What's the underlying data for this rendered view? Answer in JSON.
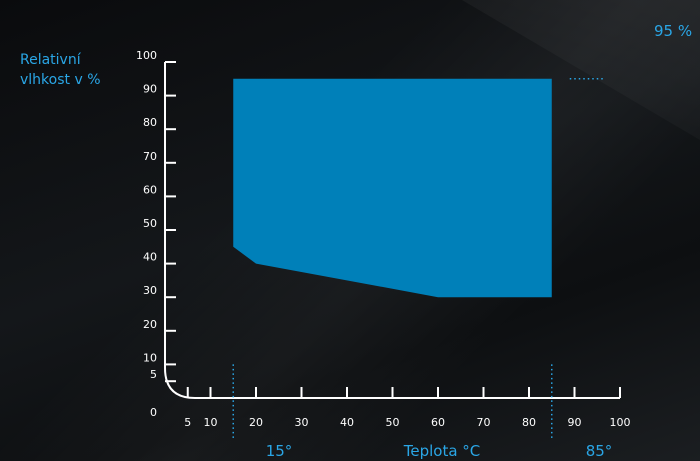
{
  "chart_data": {
    "type": "area",
    "ylabel_line1": "Relativní",
    "ylabel_line2": "vlhkost v  %",
    "xlabel": "Teplota °C",
    "x_ticks": [
      "5",
      "10",
      "20",
      "30",
      "40",
      "50",
      "60",
      "70",
      "80",
      "90",
      "100"
    ],
    "x_tick_values": [
      5,
      10,
      20,
      30,
      40,
      50,
      60,
      70,
      80,
      90,
      100
    ],
    "y_ticks": [
      "5",
      "10",
      "20",
      "30",
      "40",
      "50",
      "60",
      "70",
      "80",
      "90",
      "100"
    ],
    "y_tick_values": [
      5,
      10,
      20,
      30,
      40,
      50,
      60,
      70,
      80,
      90,
      100
    ],
    "origin_label": "0",
    "xlim": [
      0,
      100
    ],
    "ylim": [
      0,
      100
    ],
    "region": {
      "x": [
        15,
        15,
        85,
        85,
        60,
        20,
        15
      ],
      "y": [
        95,
        45,
        95,
        30,
        30,
        40,
        45
      ],
      "polygon": [
        [
          15,
          95
        ],
        [
          85,
          95
        ],
        [
          85,
          30
        ],
        [
          60,
          30
        ],
        [
          20,
          40
        ],
        [
          15,
          45
        ]
      ]
    },
    "region_color": "#0080b9",
    "accent_color": "#2aa6e6",
    "annotations": {
      "rh_limit_label": "95 %",
      "t_min_label": "15°",
      "t_max_label": "85°"
    }
  }
}
